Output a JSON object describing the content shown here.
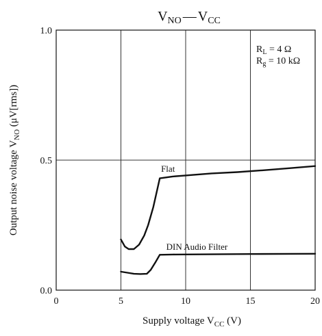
{
  "chart_data": {
    "type": "line",
    "title": {
      "v": "V",
      "no_sub": "NO",
      "dash": "—",
      "v2": "V",
      "cc_sub": "CC"
    },
    "xlabel": {
      "text": "Supply voltage  V",
      "sub": "CC",
      "unit": "  (V)"
    },
    "ylabel": {
      "text": "Output noise voltage  V",
      "sub": "NO",
      "unit": "  (μV[rms])"
    },
    "xlim": [
      0,
      20
    ],
    "ylim": [
      0.0,
      1.0
    ],
    "x_ticks": [
      {
        "value": 0,
        "label": "0"
      },
      {
        "value": 5,
        "label": "5"
      },
      {
        "value": 10,
        "label": "10"
      },
      {
        "value": 15,
        "label": "15"
      },
      {
        "value": 20,
        "label": "20"
      }
    ],
    "y_ticks": [
      {
        "value": 0.0,
        "label": "0.0"
      },
      {
        "value": 0.5,
        "label": "0.5"
      },
      {
        "value": 1.0,
        "label": "1.0"
      }
    ],
    "grid": {
      "x": [
        5,
        10,
        15
      ],
      "y": [
        0.5
      ]
    },
    "annotation": {
      "rl_main": "R",
      "rl_sub": "L",
      "rl_value": " = 4 Ω",
      "rg_main": "R",
      "rg_sub": "g",
      "rg_value": " = 10 kΩ"
    },
    "series": [
      {
        "name": "Flat",
        "label_at": [
          8.1,
          0.455
        ],
        "x": [
          5.0,
          5.3,
          5.6,
          6.0,
          6.4,
          6.8,
          7.1,
          7.5,
          8.0,
          9.0,
          10.0,
          12.0,
          14.0,
          16.0,
          18.0,
          20.0
        ],
        "y": [
          0.195,
          0.168,
          0.158,
          0.158,
          0.175,
          0.21,
          0.25,
          0.32,
          0.43,
          0.437,
          0.441,
          0.449,
          0.454,
          0.461,
          0.469,
          0.477
        ]
      },
      {
        "name": "DIN Audio Filter",
        "label_at": [
          8.5,
          0.155
        ],
        "x": [
          5.0,
          5.5,
          6.0,
          6.5,
          7.0,
          7.3,
          7.7,
          8.0,
          9.0,
          12.0,
          15.0,
          20.0
        ],
        "y": [
          0.071,
          0.067,
          0.063,
          0.062,
          0.063,
          0.078,
          0.11,
          0.136,
          0.137,
          0.138,
          0.139,
          0.14
        ]
      }
    ],
    "colors": {
      "line": "#111111",
      "grid": "#333333",
      "axis": "#111111"
    }
  }
}
